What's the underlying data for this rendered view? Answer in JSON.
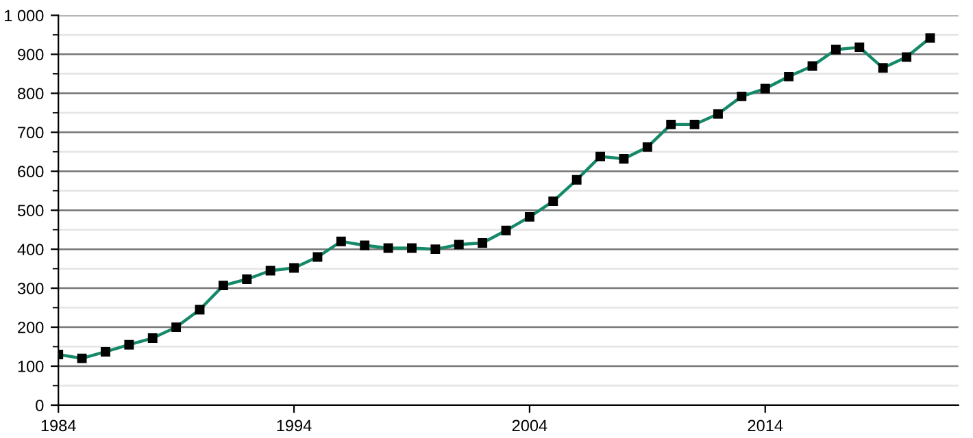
{
  "chart_data": {
    "type": "line",
    "marker": "square",
    "line_style": "solid",
    "grid": "y",
    "x": [
      1984,
      1985,
      1986,
      1987,
      1988,
      1989,
      1990,
      1991,
      1992,
      1993,
      1994,
      1995,
      1996,
      1997,
      1998,
      1999,
      2000,
      2001,
      2002,
      2003,
      2004,
      2005,
      2006,
      2007,
      2008,
      2009,
      2010,
      2011,
      2012,
      2013,
      2014,
      2015,
      2016,
      2017,
      2018,
      2019,
      2020,
      2021
    ],
    "series": [
      {
        "color": "#16896a",
        "values": [
          130,
          120,
          137,
          155,
          172,
          200,
          245,
          307,
          323,
          345,
          352,
          380,
          420,
          410,
          403,
          403,
          400,
          412,
          416,
          448,
          483,
          523,
          578,
          638,
          632,
          662,
          720,
          720,
          747,
          792,
          812,
          843,
          870,
          912,
          918,
          865,
          893,
          942
        ]
      }
    ],
    "xlim": [
      1984,
      2022.2
    ],
    "xticks": [
      1984,
      1994,
      2004,
      2014
    ],
    "ylim": [
      0,
      1000
    ],
    "yticks": [
      0,
      100,
      200,
      300,
      400,
      500,
      600,
      700,
      800,
      900,
      {
        "value": 1000,
        "label": "1 000"
      }
    ]
  }
}
